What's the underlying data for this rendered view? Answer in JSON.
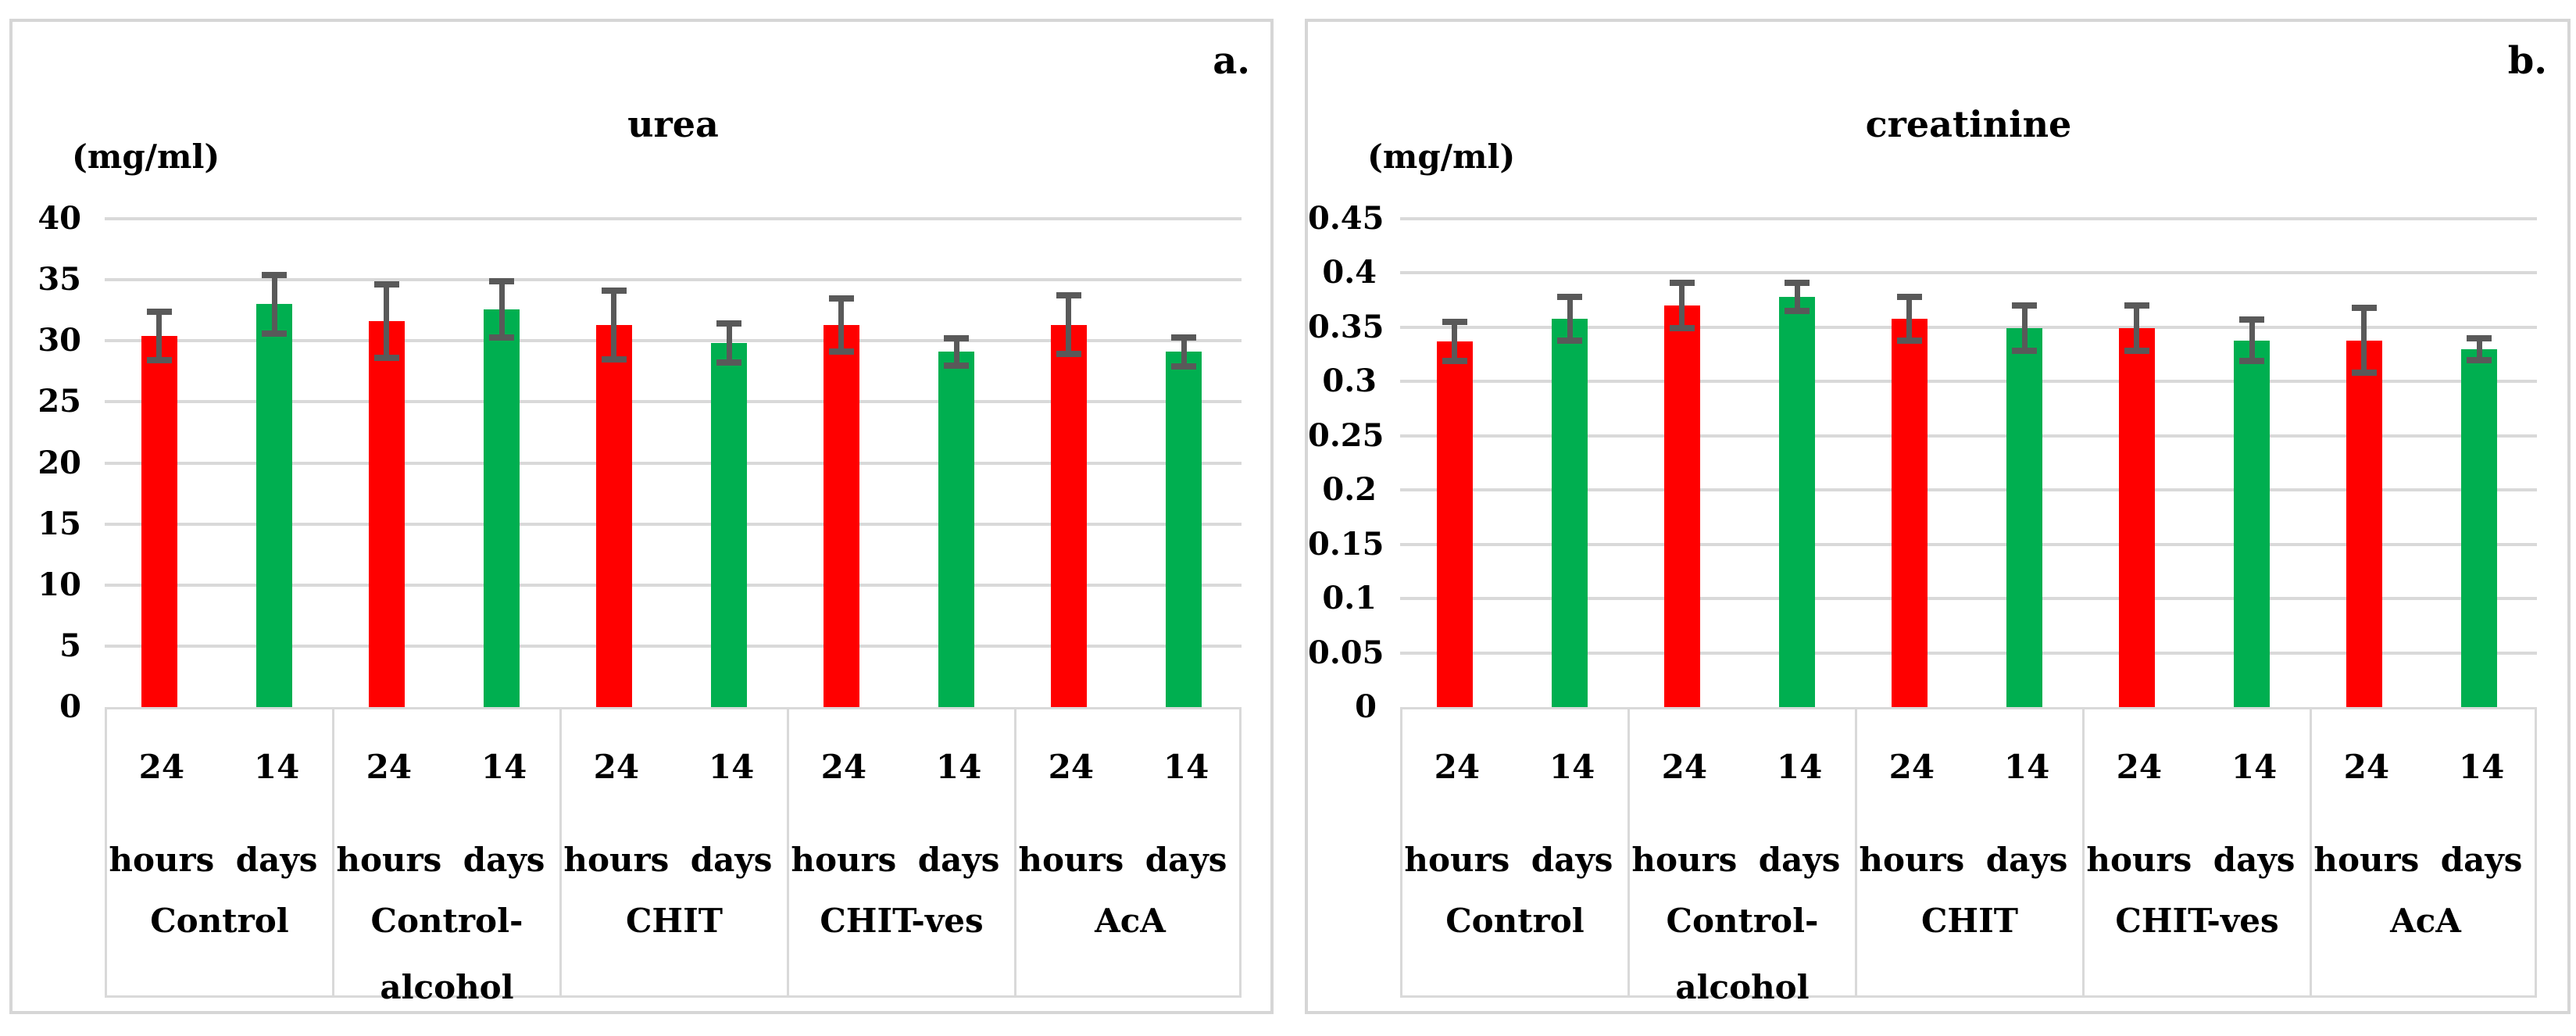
{
  "style": {
    "bar_red": "#FF0000",
    "bar_green": "#00AF50",
    "error_bar_color": "#595959",
    "gridline_color": "#D9D9D9",
    "panel_border_color": "#D6D6D6",
    "text_color": "#000000"
  },
  "chart_data": [
    {
      "type": "bar",
      "panel_label": "a.",
      "title": "urea",
      "units_label": "(mg/ml)",
      "ylim": [
        0,
        40
      ],
      "ytick_labels": [
        "0",
        "5",
        "10",
        "15",
        "20",
        "25",
        "30",
        "35",
        "40"
      ],
      "grid": true,
      "legend_position": "none",
      "error_bars": true,
      "categories": [
        "Control",
        "Control-alcohol",
        "CHIT",
        "CHIT-ves",
        "AcA"
      ],
      "subcategories": [
        "24 hours",
        "14 days"
      ],
      "series": [
        {
          "name": "24 hours",
          "color": "#FF0000",
          "values": [
            30.4,
            31.6,
            31.3,
            31.3,
            31.3
          ],
          "errors": [
            2.0,
            3.0,
            2.8,
            2.2,
            2.4
          ]
        },
        {
          "name": "14 days",
          "color": "#00AF50",
          "values": [
            33.0,
            32.6,
            29.8,
            29.1,
            29.1
          ],
          "errors": [
            2.4,
            2.3,
            1.6,
            1.1,
            1.2
          ]
        }
      ]
    },
    {
      "type": "bar",
      "panel_label": "b.",
      "title": "creatinine",
      "units_label": "(mg/ml)",
      "ylim": [
        0,
        0.45
      ],
      "ytick_labels": [
        "0",
        "0.05",
        "0.1",
        "0.15",
        "0.2",
        "0.25",
        "0.3",
        "0.35",
        "0.4",
        "0.45"
      ],
      "grid": true,
      "legend_position": "none",
      "error_bars": true,
      "categories": [
        "Control",
        "Control-alcohol",
        "CHIT",
        "CHIT-ves",
        "AcA"
      ],
      "subcategories": [
        "24 hours",
        "14 days"
      ],
      "series": [
        {
          "name": "24 hours",
          "color": "#FF0000",
          "values": [
            0.337,
            0.37,
            0.358,
            0.349,
            0.338
          ],
          "errors": [
            0.018,
            0.021,
            0.02,
            0.021,
            0.03
          ]
        },
        {
          "name": "14 days",
          "color": "#00AF50",
          "values": [
            0.358,
            0.378,
            0.349,
            0.338,
            0.33
          ],
          "errors": [
            0.02,
            0.013,
            0.021,
            0.019,
            0.01
          ]
        }
      ]
    }
  ]
}
